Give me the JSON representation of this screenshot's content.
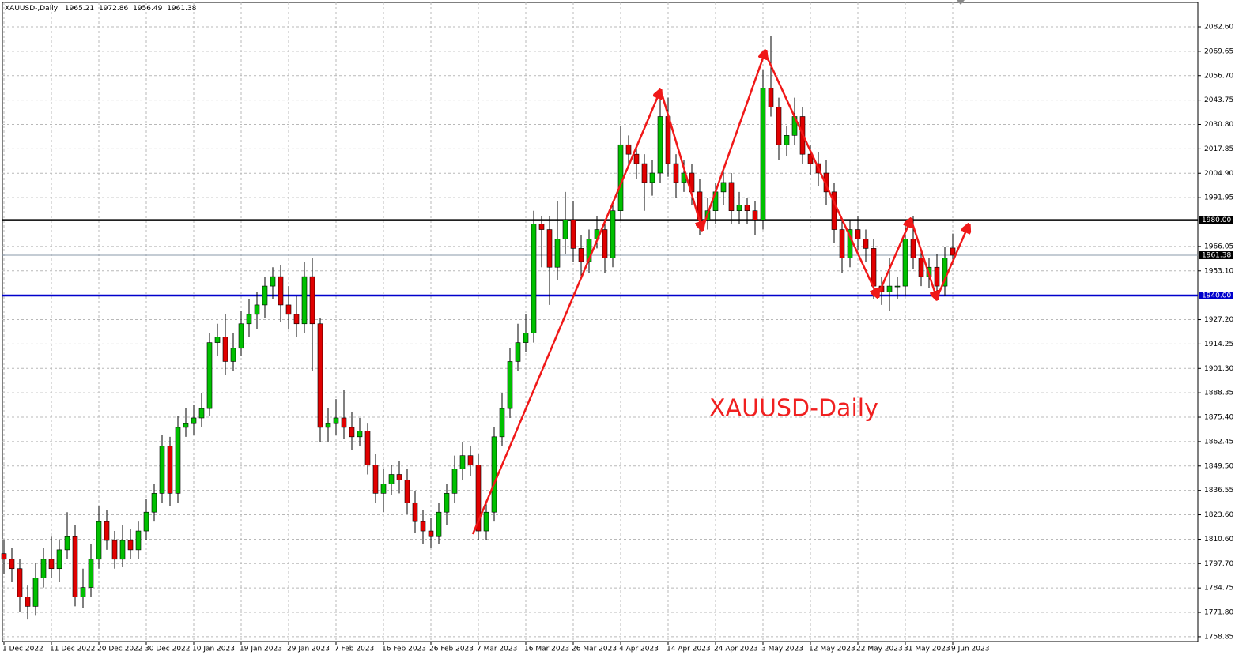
{
  "chart_data": {
    "type": "candlestick",
    "symbol": "XAUUSD-,Daily",
    "annotation": "XAUUSD-Daily",
    "categories": [
      "1 Dec 2022",
      null,
      null,
      null,
      null,
      null,
      "11 Dec 2022",
      null,
      null,
      null,
      null,
      null,
      "20 Dec 2022",
      null,
      null,
      null,
      null,
      null,
      "30 Dec 2022",
      null,
      null,
      null,
      null,
      null,
      "10 Jan 2023",
      null,
      null,
      null,
      null,
      null,
      "19 Jan 2023",
      null,
      null,
      null,
      null,
      null,
      "29 Jan 2023",
      null,
      null,
      null,
      null,
      null,
      "7 Feb 2023",
      null,
      null,
      null,
      null,
      null,
      "16 Feb 2023",
      null,
      null,
      null,
      null,
      null,
      "26 Feb 2023",
      null,
      null,
      null,
      null,
      null,
      "7 Mar 2023",
      null,
      null,
      null,
      null,
      null,
      "16 Mar 2023",
      null,
      null,
      null,
      null,
      null,
      "26 Mar 2023",
      null,
      null,
      null,
      null,
      null,
      "4 Apr 2023",
      null,
      null,
      null,
      null,
      null,
      "14 Apr 2023",
      null,
      null,
      null,
      null,
      null,
      "24 Apr 2023",
      null,
      null,
      null,
      null,
      null,
      "3 May 2023",
      null,
      null,
      null,
      null,
      null,
      "12 May 2023",
      null,
      null,
      null,
      null,
      null,
      "22 May 2023",
      null,
      null,
      null,
      null,
      null,
      "31 May 2023",
      null,
      null,
      null,
      null,
      null,
      "9 Jun 2023"
    ],
    "open": [
      1803,
      1800,
      1795,
      1780,
      1775,
      1790,
      1800,
      1795,
      1805,
      1812,
      1780,
      1785,
      1800,
      1820,
      1810,
      1800,
      1810,
      1805,
      1815,
      1825,
      1835,
      1860,
      1835,
      1870,
      1872,
      1875,
      1880,
      1915,
      1918,
      1905,
      1912,
      1925,
      1930,
      1935,
      1945,
      1950,
      1935,
      1930,
      1925,
      1950,
      1925,
      1870,
      1872,
      1875,
      1870,
      1865,
      1868,
      1850,
      1835,
      1840,
      1845,
      1842,
      1830,
      1820,
      1815,
      1812,
      1825,
      1835,
      1848,
      1855,
      1850,
      1815,
      1825,
      1865,
      1880,
      1905,
      1915,
      1920,
      1978,
      1975,
      1955,
      1970,
      1980,
      1965,
      1958,
      1970,
      1975,
      1960,
      1985,
      2020,
      2015,
      2010,
      2000,
      2005,
      2035,
      2010,
      2000,
      2005,
      1995,
      1980,
      1985,
      1995,
      2000,
      1985,
      1988,
      1985,
      1980,
      2050,
      2040,
      2020,
      2025,
      2035,
      2015,
      2010,
      2005,
      1995,
      1975,
      1960,
      1975,
      1970,
      1965,
      1945,
      1942,
      1945,
      1945,
      1970,
      1960,
      1950,
      1955,
      1945,
      1965.21
    ],
    "high": [
      1810,
      1806,
      1800,
      1786,
      1798,
      1806,
      1812,
      1810,
      1825,
      1818,
      1795,
      1808,
      1828,
      1826,
      1815,
      1818,
      1816,
      1820,
      1832,
      1840,
      1866,
      1865,
      1876,
      1880,
      1882,
      1888,
      1920,
      1925,
      1930,
      1920,
      1932,
      1938,
      1942,
      1950,
      1955,
      1956,
      1945,
      1940,
      1958,
      1960,
      1928,
      1880,
      1885,
      1890,
      1878,
      1875,
      1872,
      1856,
      1848,
      1850,
      1852,
      1848,
      1836,
      1826,
      1822,
      1830,
      1840,
      1855,
      1862,
      1860,
      1856,
      1830,
      1870,
      1888,
      1912,
      1925,
      1930,
      1985,
      1982,
      1982,
      1990,
      1995,
      1990,
      1972,
      1975,
      1982,
      1980,
      1990,
      2030,
      2025,
      2020,
      2015,
      2012,
      2048,
      2045,
      2015,
      2012,
      2010,
      2002,
      1992,
      2000,
      2008,
      2005,
      1995,
      1992,
      1990,
      2060,
      2078,
      2045,
      2030,
      2045,
      2040,
      2020,
      2016,
      2012,
      2000,
      1980,
      1980,
      1982,
      1975,
      1970,
      1950,
      1960,
      1950,
      1978,
      1982,
      1965,
      1960,
      1962,
      1966,
      1972.86
    ],
    "low": [
      1792,
      1788,
      1772,
      1768,
      1770,
      1785,
      1790,
      1788,
      1800,
      1775,
      1774,
      1780,
      1795,
      1805,
      1795,
      1796,
      1800,
      1800,
      1810,
      1820,
      1830,
      1828,
      1830,
      1865,
      1866,
      1870,
      1876,
      1908,
      1898,
      1900,
      1908,
      1918,
      1922,
      1928,
      1938,
      1926,
      1922,
      1918,
      1920,
      1900,
      1862,
      1862,
      1866,
      1864,
      1858,
      1860,
      1845,
      1830,
      1825,
      1834,
      1835,
      1824,
      1814,
      1808,
      1806,
      1808,
      1818,
      1830,
      1842,
      1844,
      1810,
      1810,
      1820,
      1860,
      1875,
      1900,
      1910,
      1915,
      1955,
      1935,
      1948,
      1962,
      1958,
      1950,
      1952,
      1965,
      1952,
      1955,
      1980,
      2008,
      2002,
      1985,
      1993,
      2000,
      2003,
      1992,
      1995,
      1988,
      1972,
      1975,
      1978,
      1988,
      1978,
      1978,
      1978,
      1972,
      1975,
      2035,
      2012,
      2014,
      2020,
      2010,
      2004,
      1998,
      1988,
      1968,
      1952,
      1955,
      1964,
      1958,
      1938,
      1935,
      1932,
      1938,
      1940,
      1954,
      1945,
      1944,
      1938,
      1940,
      1956.49
    ],
    "close": [
      1800,
      1795,
      1780,
      1775,
      1790,
      1800,
      1795,
      1805,
      1812,
      1780,
      1785,
      1800,
      1820,
      1810,
      1800,
      1810,
      1805,
      1815,
      1825,
      1835,
      1860,
      1835,
      1870,
      1872,
      1875,
      1880,
      1915,
      1918,
      1905,
      1912,
      1925,
      1930,
      1935,
      1945,
      1950,
      1935,
      1930,
      1925,
      1950,
      1925,
      1870,
      1872,
      1875,
      1870,
      1865,
      1868,
      1850,
      1835,
      1840,
      1845,
      1842,
      1830,
      1820,
      1815,
      1812,
      1825,
      1835,
      1848,
      1855,
      1850,
      1815,
      1825,
      1865,
      1880,
      1905,
      1915,
      1920,
      1978,
      1975,
      1955,
      1970,
      1980,
      1965,
      1958,
      1970,
      1975,
      1960,
      1985,
      2020,
      2015,
      2010,
      2000,
      2005,
      2035,
      2010,
      2000,
      2005,
      1995,
      1980,
      1985,
      1995,
      2000,
      1985,
      1988,
      1985,
      1980,
      2050,
      2040,
      2020,
      2025,
      2035,
      2015,
      2010,
      2005,
      1995,
      1975,
      1960,
      1975,
      1970,
      1965,
      1945,
      1942,
      1945,
      1945,
      1970,
      1960,
      1950,
      1955,
      1945,
      1960,
      1961.38
    ],
    "up_color": "#00c000",
    "down_color": "#e00000",
    "ylim": [
      1756.3,
      2095.6
    ],
    "yticks": [
      1758.85,
      {
        "value": 1771.8,
        "label": "1771.80"
      },
      1784.75,
      {
        "value": 1797.7,
        "label": "1797.70"
      },
      {
        "value": 1810.6,
        "label": "1810.60"
      },
      {
        "value": 1823.6,
        "label": "1823.60"
      },
      1836.55,
      {
        "value": 1849.5,
        "label": "1849.50"
      },
      1862.45,
      {
        "value": 1875.4,
        "label": "1875.40"
      },
      1888.35,
      {
        "value": 1901.3,
        "label": "1901.30"
      },
      1914.25,
      {
        "value": 1927.2,
        "label": "1927.20"
      },
      {
        "value": 1953.1,
        "label": "1953.10"
      },
      1966.05,
      1991.95,
      {
        "value": 2004.9,
        "label": "2004.90"
      },
      2017.85,
      {
        "value": 2030.8,
        "label": "2030.80"
      },
      2043.75,
      {
        "value": 2056.7,
        "label": "2056.70"
      },
      2069.65,
      {
        "value": 2082.6,
        "label": "2082.60"
      }
    ],
    "levels": [
      {
        "value": 1980,
        "label": "1980.00",
        "color": "#000000"
      },
      {
        "value": 1940,
        "label": "1940.00",
        "color": "#0000cc"
      }
    ],
    "grid": true
  }
}
